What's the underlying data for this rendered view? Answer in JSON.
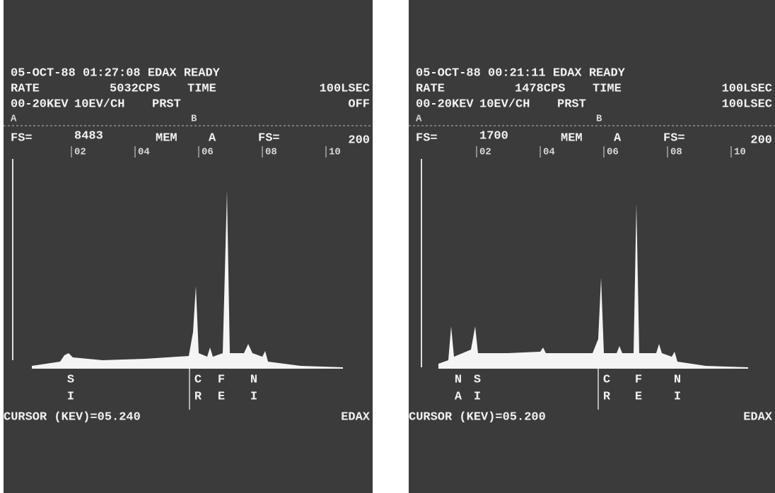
{
  "panels": [
    {
      "header": "05-OCT-88 01:27:08 EDAX READY",
      "rate_label": "RATE",
      "rate": "5032CPS",
      "time_label": "TIME",
      "time": "100LSEC",
      "range": "00-20KEV",
      "resolution": "10EV/CH",
      "preset_label": "PRST",
      "preset": "OFF",
      "marker_a": "A",
      "marker_b": "B",
      "fs_label": "FS=",
      "fs": "8483",
      "mem_label": "MEM",
      "mem": "A",
      "fs2_label": "FS=",
      "fs2": "200",
      "ticks": [
        "02",
        "04",
        "06",
        "08",
        "10"
      ],
      "peaks": [
        {
          "top": "S",
          "bottom": "I"
        },
        {
          "top": "C",
          "bottom": "R"
        },
        {
          "top": "F",
          "bottom": "E"
        },
        {
          "top": "N",
          "bottom": "I"
        }
      ],
      "cursor": "CURSOR (KEV)=05.240",
      "brand": "EDAX"
    },
    {
      "header": "05-OCT-88 00:21:11 EDAX READY",
      "rate_label": "RATE",
      "rate": "1478CPS",
      "time_label": "TIME",
      "time": "100LSEC",
      "range": "00-20KEV",
      "resolution": "10EV/CH",
      "preset_label": "PRST",
      "preset": "100LSEC",
      "marker_a": "A",
      "marker_b": "B",
      "fs_label": "FS=",
      "fs": "1700",
      "mem_label": "MEM",
      "mem": "A",
      "fs2_label": "FS=",
      "fs2": "200",
      "ticks": [
        "02",
        "04",
        "06",
        "08",
        "10"
      ],
      "peaks": [
        {
          "top": "N",
          "bottom": "A"
        },
        {
          "top": "S",
          "bottom": "I"
        },
        {
          "top": "C",
          "bottom": "R"
        },
        {
          "top": "F",
          "bottom": "E"
        },
        {
          "top": "N",
          "bottom": "I"
        }
      ],
      "cursor": "CURSOR (KEV)=05.200",
      "brand": "EDAX"
    }
  ]
}
